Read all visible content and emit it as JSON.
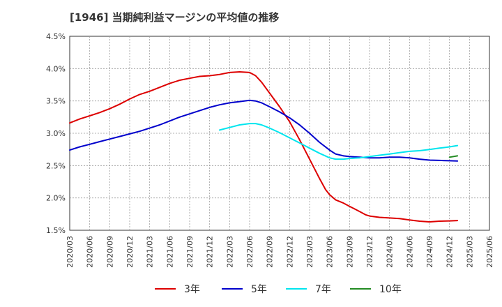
{
  "chart_data": {
    "type": "line",
    "title": "[1946]  当期純利益マージンの平均値の推移",
    "xlabel": "",
    "ylabel": "",
    "ylim": [
      1.5,
      4.5
    ],
    "yticks": [
      "1.5%",
      "2.0%",
      "2.5%",
      "3.0%",
      "3.5%",
      "4.0%",
      "4.5%"
    ],
    "yticks_values": [
      1.5,
      2.0,
      2.5,
      3.0,
      3.5,
      4.0,
      4.5
    ],
    "x_categories": [
      "2020/03",
      "2020/06",
      "2020/09",
      "2020/12",
      "2021/03",
      "2021/06",
      "2021/09",
      "2021/12",
      "2022/03",
      "2022/06",
      "2022/09",
      "2022/12",
      "2023/03",
      "2023/06",
      "2023/09",
      "2023/12",
      "2024/03",
      "2024/06",
      "2024/09",
      "2024/12",
      "2025/03",
      "2025/06"
    ],
    "grid": true,
    "legend_position": "bottom",
    "series": [
      {
        "name": "3年",
        "color": "#dd0000",
        "points": [
          [
            0,
            3.16
          ],
          [
            0.5,
            3.22
          ],
          [
            1,
            3.27
          ],
          [
            1.5,
            3.32
          ],
          [
            2,
            3.38
          ],
          [
            2.5,
            3.45
          ],
          [
            3,
            3.53
          ],
          [
            3.5,
            3.6
          ],
          [
            4,
            3.65
          ],
          [
            4.5,
            3.71
          ],
          [
            5,
            3.77
          ],
          [
            5.5,
            3.82
          ],
          [
            6,
            3.85
          ],
          [
            6.5,
            3.88
          ],
          [
            7,
            3.89
          ],
          [
            7.5,
            3.91
          ],
          [
            8,
            3.94
          ],
          [
            8.5,
            3.95
          ],
          [
            9,
            3.94
          ],
          [
            9.3,
            3.89
          ],
          [
            9.6,
            3.79
          ],
          [
            10,
            3.62
          ],
          [
            10.5,
            3.41
          ],
          [
            11,
            3.18
          ],
          [
            11.5,
            2.9
          ],
          [
            12,
            2.6
          ],
          [
            12.5,
            2.3
          ],
          [
            12.8,
            2.13
          ],
          [
            13,
            2.05
          ],
          [
            13.3,
            1.97
          ],
          [
            13.7,
            1.92
          ],
          [
            14,
            1.87
          ],
          [
            14.5,
            1.79
          ],
          [
            14.8,
            1.74
          ],
          [
            15,
            1.72
          ],
          [
            15.5,
            1.7
          ],
          [
            16,
            1.69
          ],
          [
            16.5,
            1.68
          ],
          [
            17,
            1.66
          ],
          [
            17.5,
            1.64
          ],
          [
            18,
            1.63
          ],
          [
            18.5,
            1.64
          ],
          [
            19,
            1.645
          ],
          [
            19.4,
            1.65
          ]
        ]
      },
      {
        "name": "5年",
        "color": "#0000cc",
        "points": [
          [
            0,
            2.74
          ],
          [
            0.5,
            2.79
          ],
          [
            1,
            2.83
          ],
          [
            1.5,
            2.87
          ],
          [
            2,
            2.91
          ],
          [
            2.5,
            2.95
          ],
          [
            3,
            2.99
          ],
          [
            3.5,
            3.03
          ],
          [
            4,
            3.08
          ],
          [
            4.5,
            3.13
          ],
          [
            5,
            3.19
          ],
          [
            5.5,
            3.25
          ],
          [
            6,
            3.3
          ],
          [
            6.5,
            3.35
          ],
          [
            7,
            3.4
          ],
          [
            7.5,
            3.44
          ],
          [
            8,
            3.47
          ],
          [
            8.5,
            3.49
          ],
          [
            9,
            3.51
          ],
          [
            9.3,
            3.5
          ],
          [
            9.6,
            3.47
          ],
          [
            10,
            3.41
          ],
          [
            10.5,
            3.33
          ],
          [
            11,
            3.24
          ],
          [
            11.5,
            3.13
          ],
          [
            12,
            3.0
          ],
          [
            12.5,
            2.86
          ],
          [
            13,
            2.74
          ],
          [
            13.3,
            2.68
          ],
          [
            13.7,
            2.65
          ],
          [
            14,
            2.64
          ],
          [
            14.5,
            2.63
          ],
          [
            15,
            2.62
          ],
          [
            15.5,
            2.62
          ],
          [
            16,
            2.63
          ],
          [
            16.5,
            2.63
          ],
          [
            17,
            2.62
          ],
          [
            17.5,
            2.6
          ],
          [
            18,
            2.585
          ],
          [
            18.5,
            2.58
          ],
          [
            19,
            2.575
          ],
          [
            19.4,
            2.57
          ]
        ]
      },
      {
        "name": "7年",
        "color": "#00e5ee",
        "points": [
          [
            7.5,
            3.05
          ],
          [
            8,
            3.09
          ],
          [
            8.5,
            3.13
          ],
          [
            9,
            3.15
          ],
          [
            9.3,
            3.15
          ],
          [
            9.6,
            3.13
          ],
          [
            10,
            3.08
          ],
          [
            10.5,
            3.01
          ],
          [
            11,
            2.93
          ],
          [
            11.5,
            2.85
          ],
          [
            12,
            2.77
          ],
          [
            12.5,
            2.69
          ],
          [
            13,
            2.62
          ],
          [
            13.3,
            2.6
          ],
          [
            13.7,
            2.6
          ],
          [
            14,
            2.61
          ],
          [
            14.5,
            2.62
          ],
          [
            15,
            2.64
          ],
          [
            15.5,
            2.66
          ],
          [
            16,
            2.68
          ],
          [
            16.5,
            2.7
          ],
          [
            17,
            2.72
          ],
          [
            17.5,
            2.73
          ],
          [
            18,
            2.75
          ],
          [
            18.5,
            2.77
          ],
          [
            19,
            2.79
          ],
          [
            19.4,
            2.81
          ]
        ]
      },
      {
        "name": "10年",
        "color": "#228b22",
        "points": [
          [
            19.0,
            2.63
          ],
          [
            19.4,
            2.65
          ]
        ]
      }
    ]
  }
}
